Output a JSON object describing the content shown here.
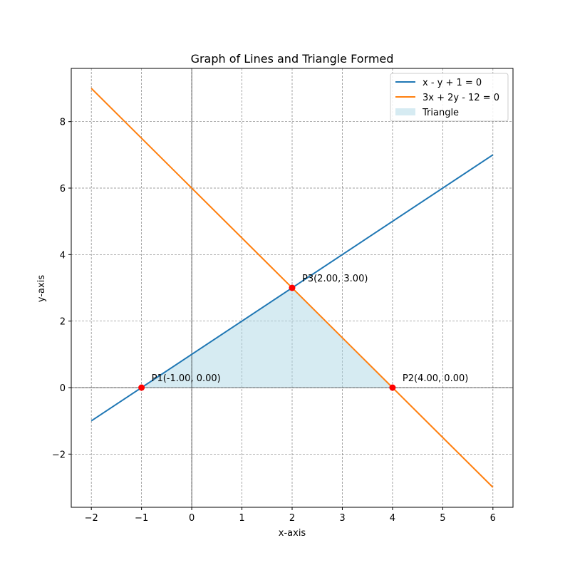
{
  "chart_data": {
    "type": "line",
    "title": "Graph of Lines and Triangle Formed",
    "xlabel": "x-axis",
    "ylabel": "y-axis",
    "xlim": [
      -2.4,
      6.4
    ],
    "ylim": [
      -3.6,
      9.6
    ],
    "xticks": [
      -2,
      -1,
      0,
      1,
      2,
      3,
      4,
      5,
      6
    ],
    "xtick_labels": [
      "−2",
      "−1",
      "0",
      "1",
      "2",
      "3",
      "4",
      "5",
      "6"
    ],
    "yticks": [
      -2,
      0,
      2,
      4,
      6,
      8
    ],
    "ytick_labels": [
      "−2",
      "0",
      "2",
      "4",
      "6",
      "8"
    ],
    "grid": true,
    "legend_position": "top-right",
    "series": [
      {
        "name": "x - y + 1 = 0",
        "color": "#1f77b4",
        "x": [
          -2,
          6
        ],
        "y": [
          -1,
          7
        ]
      },
      {
        "name": "3x + 2y - 12 = 0",
        "color": "#ff7f0e",
        "x": [
          -2,
          6
        ],
        "y": [
          9,
          -3
        ]
      }
    ],
    "fill": {
      "name": "Triangle",
      "color": "#add8e6",
      "x": [
        -1,
        4,
        2
      ],
      "y": [
        0,
        0,
        3
      ]
    },
    "points": [
      {
        "label": "P1(-1.00, 0.00)",
        "x": -1,
        "y": 0
      },
      {
        "label": "P2(4.00, 0.00)",
        "x": 4,
        "y": 0
      },
      {
        "label": "P3(2.00, 3.00)",
        "x": 2,
        "y": 3
      }
    ],
    "point_color": "#ff0000"
  }
}
